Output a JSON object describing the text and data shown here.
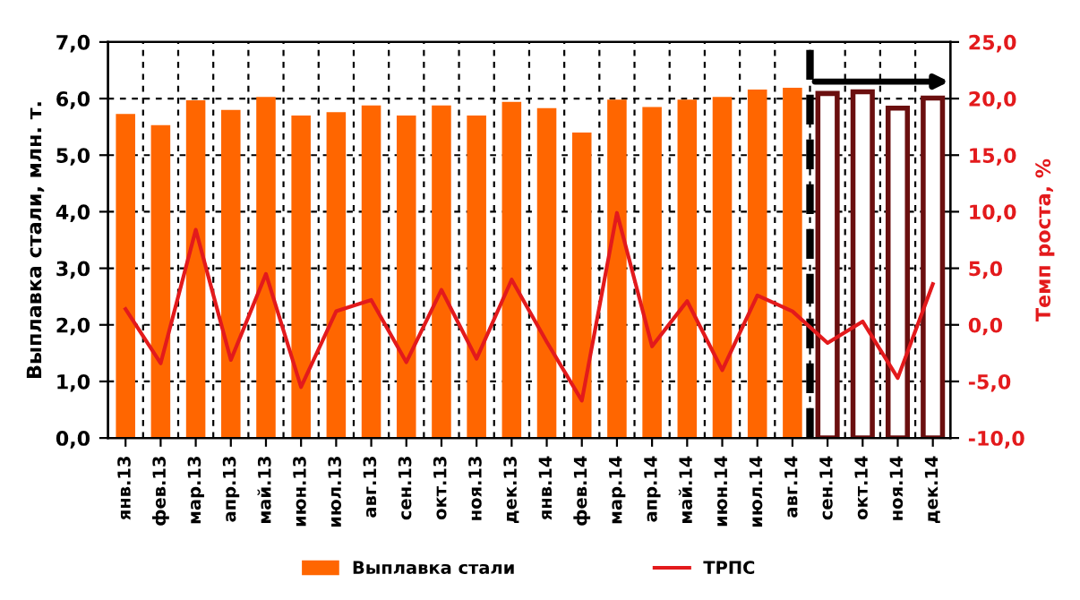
{
  "chart_data": {
    "type": "bar",
    "categories": [
      "янв.13",
      "фев.13",
      "мар.13",
      "апр.13",
      "май.13",
      "июн.13",
      "июл.13",
      "авг.13",
      "сен.13",
      "окт.13",
      "ноя.13",
      "дек.13",
      "янв.14",
      "фев.14",
      "мар.14",
      "апр.14",
      "май.14",
      "июн.14",
      "июл.14",
      "авг.14",
      "сен.14",
      "окт.14",
      "ноя.14",
      "дек.14"
    ],
    "series": [
      {
        "name": "Выплавка стали",
        "color": "#ff6600",
        "colors": [
          "#ff6600",
          "#ff6600",
          "#ff6600",
          "#ff6600",
          "#ff6600",
          "#ff6600",
          "#ff6600",
          "#ff6600",
          "#ff6600",
          "#ff6600",
          "#ff6600",
          "#ff6600",
          "#ff6600",
          "#ff6600",
          "#ff6600",
          "#ff6600",
          "#ff6600",
          "#ff6600",
          "#ff6600",
          "#ff6600",
          "#6b0f0f",
          "#6b0f0f",
          "#6b0f0f",
          "#6b0f0f"
        ],
        "values": [
          5.73,
          5.53,
          5.97,
          5.8,
          6.03,
          5.7,
          5.76,
          5.88,
          5.7,
          5.88,
          5.7,
          5.94,
          5.83,
          5.4,
          5.98,
          5.85,
          5.98,
          6.03,
          6.16,
          6.19,
          6.09,
          6.12,
          5.83,
          6.01
        ]
      },
      {
        "name": "ТРПС",
        "type": "line",
        "axis": "y2",
        "color": "#e31a1c",
        "values": [
          1.4,
          -3.4,
          8.4,
          -3.1,
          4.5,
          -5.5,
          1.2,
          2.2,
          -3.3,
          3.1,
          -3.0,
          4.0,
          -1.5,
          -6.7,
          9.9,
          -1.9,
          2.1,
          -4.0,
          2.6,
          1.2,
          -1.6,
          0.3,
          -4.7,
          3.6
        ]
      }
    ],
    "ylabel": "Выплавка стали, млн. т.",
    "y2label": "Темп роста, %",
    "ylim": [
      0,
      7
    ],
    "yticks": [
      {
        "value": 0,
        "label": "0,0"
      },
      {
        "value": 1,
        "label": "1,0"
      },
      {
        "value": 2,
        "label": "2,0"
      },
      {
        "value": 3,
        "label": "3,0"
      },
      {
        "value": 4,
        "label": "4,0"
      },
      {
        "value": 5,
        "label": "5,0"
      },
      {
        "value": 6,
        "label": "6,0"
      },
      {
        "value": 7,
        "label": "7,0"
      }
    ],
    "y2lim": [
      -10,
      25
    ],
    "y2ticks": [
      {
        "value": -10,
        "label": "-10,0"
      },
      {
        "value": -5,
        "label": "-5,0"
      },
      {
        "value": 0,
        "label": "0,0"
      },
      {
        "value": 5,
        "label": "5,0"
      },
      {
        "value": 10,
        "label": "10,0"
      },
      {
        "value": 15,
        "label": "15,0"
      },
      {
        "value": 20,
        "label": "20,0"
      },
      {
        "value": 25,
        "label": "25,0"
      }
    ],
    "ref_lines": [
      {
        "axis": "x",
        "value": "сен.14",
        "color": "#000000",
        "line_style": "dashed"
      }
    ],
    "grid": true,
    "legend": "bottom"
  }
}
